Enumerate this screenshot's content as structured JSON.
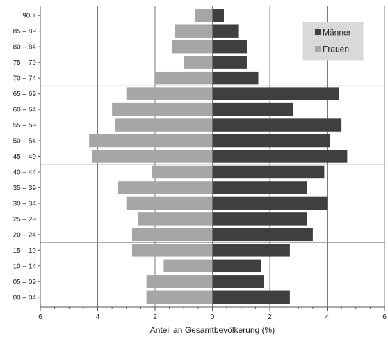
{
  "chart_data": {
    "type": "bar",
    "orientation": "horizontal",
    "layout": "population-pyramid",
    "title": "",
    "xlabel": "Anteil an Gesamtbevölkerung  (%)",
    "ylabel": "",
    "xlim": [
      -6,
      6
    ],
    "x_ticks": [
      "6",
      "4",
      "2",
      "0",
      "2",
      "4",
      "6"
    ],
    "grid": "vertical lines at x ticks; horizontal dividers every fifth age group",
    "legend_placement": "top-right",
    "categories": [
      "90 +",
      "85 – 89",
      "80 – 84",
      "75 – 79",
      "70 – 74",
      "65 – 69",
      "60 – 64",
      "55 – 59",
      "50 – 54",
      "45 – 49",
      "40 – 44",
      "35 – 39",
      "30 – 34",
      "25 – 29",
      "20 – 24",
      "15 – 19",
      "10 – 14",
      "05 – 09",
      "00 – 04"
    ],
    "series": [
      {
        "name": "Männer",
        "color": "#3f3f3f",
        "side": "right",
        "values": [
          0.4,
          0.9,
          1.2,
          1.2,
          1.6,
          4.4,
          2.8,
          4.5,
          4.1,
          4.7,
          3.9,
          3.3,
          4.0,
          3.3,
          3.5,
          2.7,
          1.7,
          1.8,
          2.7
        ]
      },
      {
        "name": "Frauen",
        "color": "#a6a6a6",
        "side": "left",
        "values": [
          0.6,
          1.3,
          1.4,
          1.0,
          2.0,
          3.0,
          3.5,
          3.4,
          4.3,
          4.2,
          2.1,
          3.3,
          3.0,
          2.6,
          2.8,
          2.8,
          1.7,
          2.3,
          2.3
        ]
      }
    ]
  }
}
